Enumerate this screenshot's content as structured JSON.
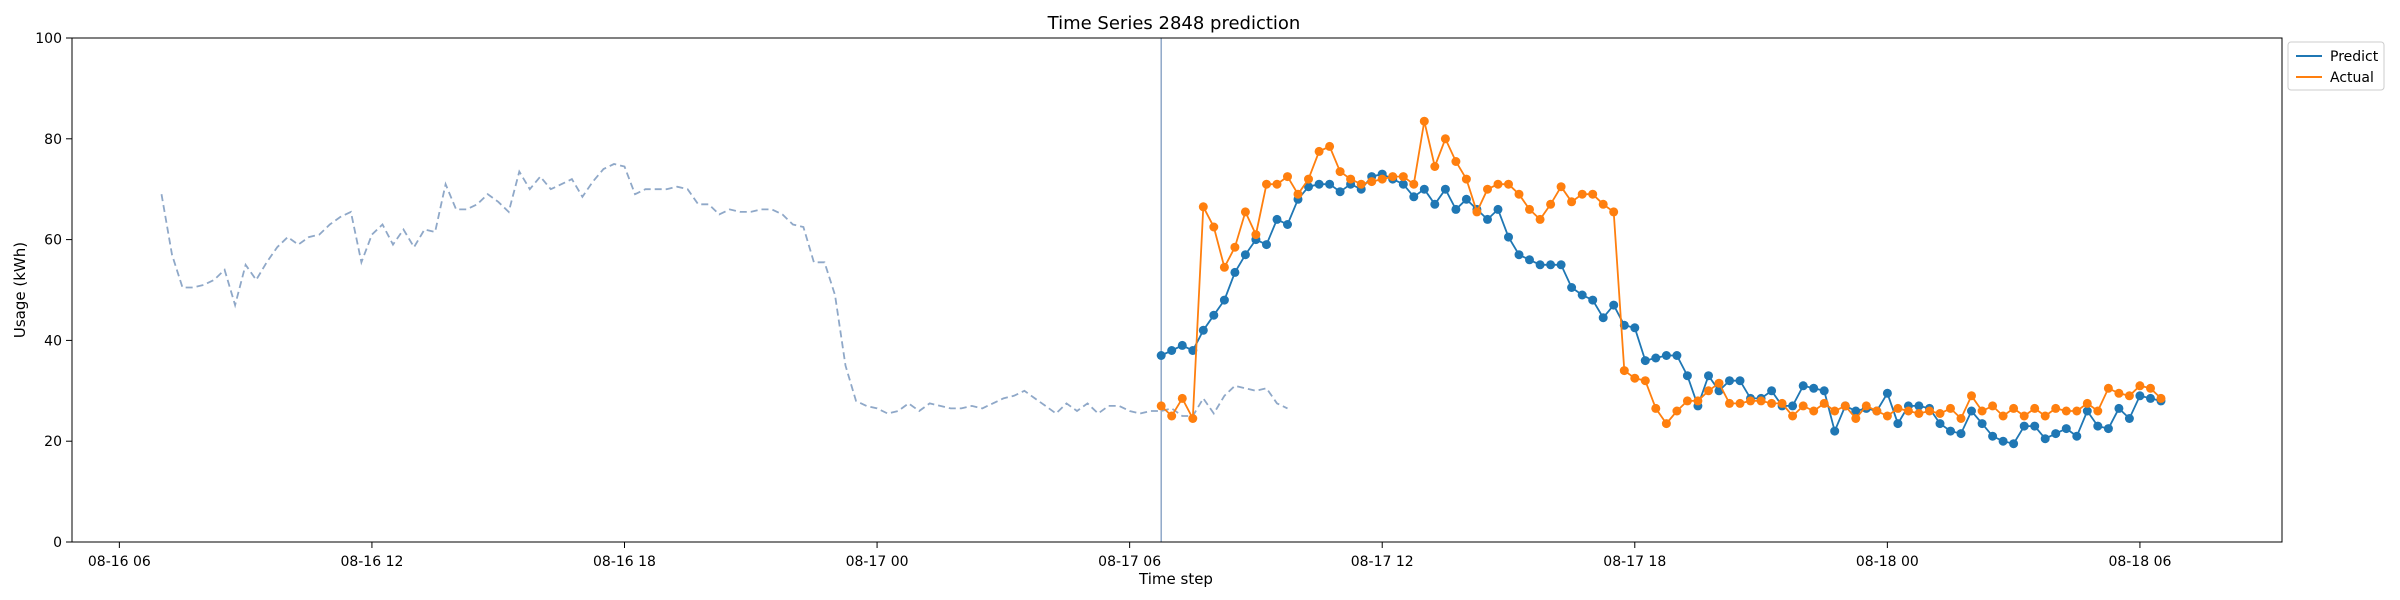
{
  "chart_data": {
    "type": "line",
    "title": "Time Series 2848 prediction",
    "xlabel": "Time step",
    "ylabel": "Usage (kWh)",
    "ylim": [
      0,
      100
    ],
    "yticks": [
      0,
      20,
      40,
      60,
      80,
      100
    ],
    "xticks": [
      {
        "t": 7,
        "label": "08-16 06"
      },
      {
        "t": 31,
        "label": "08-16 12"
      },
      {
        "t": 55,
        "label": "08-16 18"
      },
      {
        "t": 79,
        "label": "08-17 00"
      },
      {
        "t": 103,
        "label": "08-17 06"
      },
      {
        "t": 127,
        "label": "08-17 12"
      },
      {
        "t": 151,
        "label": "08-17 18"
      },
      {
        "t": 175,
        "label": "08-18 00"
      },
      {
        "t": 199,
        "label": "08-18 06"
      }
    ],
    "xlim": [
      2.5,
      212.5
    ],
    "forecast_start": 106,
    "legend_position": "top-right, outside plot",
    "history": {
      "color": "#8fa8c8",
      "style": "dashed",
      "start": 11,
      "values": [
        69,
        57,
        50.5,
        50.5,
        51,
        52,
        54,
        47,
        55,
        52,
        55.5,
        58.5,
        60.5,
        59,
        60.5,
        61,
        63,
        64.5,
        65.5,
        55.5,
        61,
        63,
        59,
        62,
        58.5,
        62,
        61.5,
        71,
        66,
        66,
        67,
        69,
        67.5,
        65.5,
        73.5,
        70,
        72.5,
        70,
        71,
        72,
        68.5,
        71.5,
        74,
        75,
        74.5,
        69,
        70,
        70,
        70,
        70.5,
        70,
        67,
        67,
        65,
        66,
        65.5,
        65.5,
        66,
        66,
        65,
        63,
        62.5,
        55.5,
        55.5,
        49,
        35,
        28,
        27,
        26.5,
        25.5,
        26,
        27.5,
        26,
        27.5,
        27,
        26.5,
        26.5,
        27,
        26.5,
        27.5,
        28.5,
        29,
        30,
        28.5,
        27,
        25.5,
        27.5,
        26,
        27.5,
        25.5,
        27,
        27,
        26,
        25.5,
        26,
        26,
        26.5,
        25,
        25,
        28.5,
        25.5,
        29,
        31,
        30.5,
        30,
        30.5,
        27.5,
        26.5
      ]
    },
    "series": [
      {
        "name": "Predict",
        "color": "#1f77b4",
        "start": 106,
        "values": [
          37,
          38,
          39,
          38,
          42,
          45,
          48,
          53.5,
          57,
          60,
          59,
          64,
          63,
          68,
          70.5,
          71,
          71,
          69.5,
          71,
          70,
          72.5,
          73,
          72,
          71,
          68.5,
          70,
          67,
          70,
          66,
          68,
          66,
          64,
          66,
          60.5,
          57,
          56,
          55,
          55,
          55,
          50.5,
          49,
          48,
          44.5,
          47,
          43,
          42.5,
          36,
          36.5,
          37,
          37,
          33,
          27,
          33,
          30,
          32,
          32,
          28.5,
          28.5,
          30,
          27,
          27,
          31,
          30.5,
          30,
          22,
          27,
          26,
          26.5,
          26,
          29.5,
          23.5,
          27,
          27,
          26.5,
          23.5,
          22,
          21.5,
          26,
          23.5,
          21,
          20,
          19.5,
          23,
          23,
          20.5,
          21.5,
          22.5,
          21,
          26,
          23,
          22.5,
          26.5,
          24.5,
          29,
          28.5,
          28
        ]
      },
      {
        "name": "Actual",
        "color": "#ff7f0e",
        "start": 106,
        "values": [
          27,
          25,
          28.5,
          24.5,
          66.5,
          62.5,
          54.5,
          58.5,
          65.5,
          61,
          71,
          71,
          72.5,
          69,
          72,
          77.5,
          78.5,
          73.5,
          72,
          71,
          71.5,
          72,
          72.5,
          72.5,
          71,
          83.5,
          74.5,
          80,
          75.5,
          72,
          65.5,
          70,
          71,
          71,
          69,
          66,
          64,
          67,
          70.5,
          67.5,
          69,
          69,
          67,
          65.5,
          34,
          32.5,
          32,
          26.5,
          23.5,
          26,
          28,
          28,
          30,
          31.5,
          27.5,
          27.5,
          28,
          28,
          27.5,
          27.5,
          25,
          27,
          26,
          27.5,
          26,
          27,
          24.5,
          27,
          26,
          25,
          26.5,
          26,
          25.5,
          26,
          25.5,
          26.5,
          24.5,
          29,
          26,
          27,
          25,
          26.5,
          25,
          26.5,
          25,
          26.5,
          26,
          26,
          27.5,
          26,
          30.5,
          29.5,
          29,
          31,
          30.5,
          28.5
        ]
      }
    ]
  }
}
